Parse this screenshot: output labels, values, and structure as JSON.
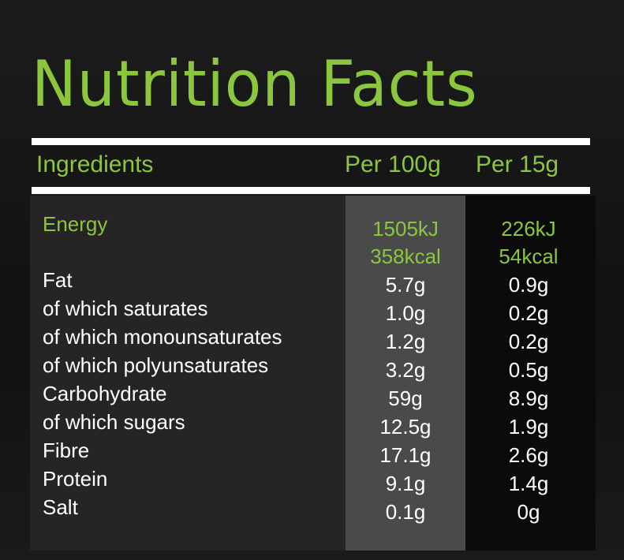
{
  "title": "Nutrition Facts",
  "table": {
    "header": [
      "Ingredients",
      "Per 100g",
      "Per 15g"
    ],
    "energy": {
      "label": "Energy",
      "per100": [
        "1505kJ",
        "358kcal"
      ],
      "per15": [
        "226kJ",
        "54kcal"
      ]
    },
    "rows": [
      [
        "Fat",
        "5.7g",
        "0.9g"
      ],
      [
        "of which saturates",
        "1.0g",
        "0.2g"
      ],
      [
        "of which monounsaturates",
        "1.2g",
        "0.2g"
      ],
      [
        "of which polyunsaturates",
        "3.2g",
        "0.5g"
      ],
      [
        "Carbohydrate",
        "59g",
        "8.9g"
      ],
      [
        "of which sugars",
        "12.5g",
        "1.9g"
      ],
      [
        "Fibre",
        "17.1g",
        "2.6g"
      ],
      [
        "Protein",
        "9.1g",
        "1.4g"
      ],
      [
        "Salt",
        "0.1g",
        "0g"
      ]
    ]
  }
}
